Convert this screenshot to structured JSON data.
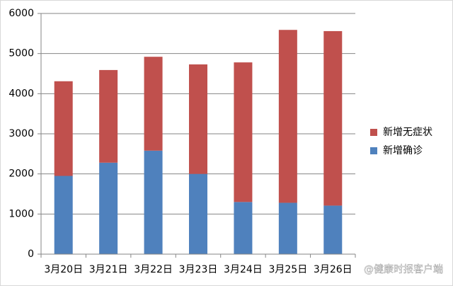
{
  "chart_data": {
    "type": "stacked_bar",
    "categories": [
      "3月20日",
      "3月21日",
      "3月22日",
      "3月23日",
      "3月24日",
      "3月25日",
      "3月26日"
    ],
    "series": [
      {
        "name": "新增确诊",
        "color": "#4f81bd",
        "values": [
          1950,
          2280,
          2580,
          2000,
          1300,
          1280,
          1210
        ]
      },
      {
        "name": "新增无症状",
        "color": "#c0504d",
        "values": [
          2360,
          2310,
          2340,
          2730,
          3480,
          4310,
          4350
        ]
      }
    ],
    "ylim": [
      0,
      6000
    ],
    "yticks": [
      0,
      1000,
      2000,
      3000,
      4000,
      5000,
      6000
    ],
    "grid": true,
    "legend": "right",
    "watermark": "@健康时报客户端"
  }
}
